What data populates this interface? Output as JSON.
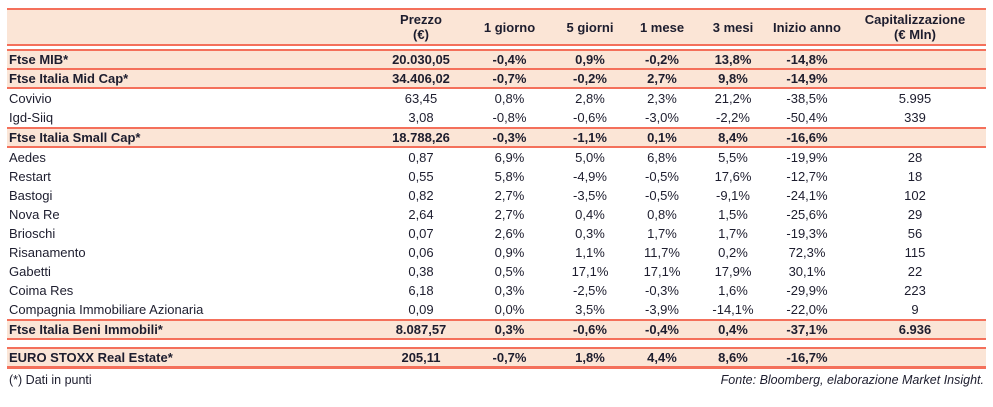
{
  "colors": {
    "accent_border": "#f4705b",
    "row_highlight": "#fbe5d6",
    "text": "#1d1d2e"
  },
  "table": {
    "columns": [
      {
        "label": "",
        "sublabel": ""
      },
      {
        "label": "Prezzo",
        "sublabel": "(€)"
      },
      {
        "label": "1 giorno",
        "sublabel": ""
      },
      {
        "label": "5 giorni",
        "sublabel": ""
      },
      {
        "label": "1 mese",
        "sublabel": ""
      },
      {
        "label": "3 mesi",
        "sublabel": ""
      },
      {
        "label": "Inizio anno",
        "sublabel": ""
      },
      {
        "label": "Capitalizzazione",
        "sublabel": "(€ Mln)"
      }
    ],
    "rows": [
      {
        "name": "Ftse MIB*",
        "style": "index",
        "cells": [
          "20.030,05",
          "-0,4%",
          "0,9%",
          "-0,2%",
          "13,8%",
          "-14,8%",
          ""
        ]
      },
      {
        "name": "Ftse Italia Mid Cap*",
        "style": "index",
        "cells": [
          "34.406,02",
          "-0,7%",
          "-0,2%",
          "2,7%",
          "9,8%",
          "-14,9%",
          ""
        ]
      },
      {
        "name": "Covivio",
        "style": "stock",
        "cells": [
          "63,45",
          "0,8%",
          "2,8%",
          "2,3%",
          "21,2%",
          "-38,5%",
          "5.995"
        ]
      },
      {
        "name": "Igd-Siiq",
        "style": "stock",
        "cells": [
          "3,08",
          "-0,8%",
          "-0,6%",
          "-3,0%",
          "-2,2%",
          "-50,4%",
          "339"
        ]
      },
      {
        "name": "Ftse Italia Small Cap*",
        "style": "index",
        "cells": [
          "18.788,26",
          "-0,3%",
          "-1,1%",
          "0,1%",
          "8,4%",
          "-16,6%",
          ""
        ]
      },
      {
        "name": "Aedes",
        "style": "stock",
        "cells": [
          "0,87",
          "6,9%",
          "5,0%",
          "6,8%",
          "5,5%",
          "-19,9%",
          "28"
        ]
      },
      {
        "name": "Restart",
        "style": "stock",
        "cells": [
          "0,55",
          "5,8%",
          "-4,9%",
          "-0,5%",
          "17,6%",
          "-12,7%",
          "18"
        ]
      },
      {
        "name": "Bastogi",
        "style": "stock",
        "cells": [
          "0,82",
          "2,7%",
          "-3,5%",
          "-0,5%",
          "-9,1%",
          "-24,1%",
          "102"
        ]
      },
      {
        "name": "Nova Re",
        "style": "stock",
        "cells": [
          "2,64",
          "2,7%",
          "0,4%",
          "0,8%",
          "1,5%",
          "-25,6%",
          "29"
        ]
      },
      {
        "name": "Brioschi",
        "style": "stock",
        "cells": [
          "0,07",
          "2,6%",
          "0,3%",
          "1,7%",
          "1,7%",
          "-19,3%",
          "56"
        ]
      },
      {
        "name": "Risanamento",
        "style": "stock",
        "cells": [
          "0,06",
          "0,9%",
          "1,1%",
          "11,7%",
          "0,2%",
          "72,3%",
          "115"
        ]
      },
      {
        "name": "Gabetti",
        "style": "stock",
        "cells": [
          "0,38",
          "0,5%",
          "17,1%",
          "17,1%",
          "17,9%",
          "30,1%",
          "22"
        ]
      },
      {
        "name": "Coima Res",
        "style": "stock",
        "cells": [
          "6,18",
          "0,3%",
          "-2,5%",
          "-0,3%",
          "1,6%",
          "-29,9%",
          "223"
        ]
      },
      {
        "name": "Compagnia Immobiliare Azionaria",
        "style": "stock",
        "cells": [
          "0,09",
          "0,0%",
          "3,5%",
          "-3,9%",
          "-14,1%",
          "-22,0%",
          "9"
        ]
      },
      {
        "name": "Ftse Italia Beni Immobili*",
        "style": "index",
        "cells": [
          "8.087,57",
          "0,3%",
          "-0,6%",
          "-0,4%",
          "0,4%",
          "-37,1%",
          "6.936"
        ]
      },
      {
        "name": "EURO STOXX Real Estate*",
        "style": "index",
        "cells": [
          "205,11",
          "-0,7%",
          "1,8%",
          "4,4%",
          "8,6%",
          "-16,7%",
          ""
        ]
      }
    ]
  },
  "footer": {
    "note_left": "(*) Dati in punti",
    "note_right": "Fonte: Bloomberg, elaborazione Market Insight."
  }
}
